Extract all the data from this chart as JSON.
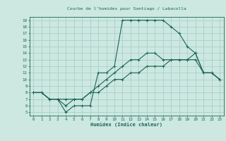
{
  "title": "Courbe de l’humidex pour Santiago / Labacolla",
  "xlabel": "Humidex (Indice chaleur)",
  "bg_color": "#cce8e0",
  "grid_color": "#aacfc8",
  "line_color": "#1a6655",
  "xlim": [
    -0.5,
    23.5
  ],
  "ylim": [
    4.5,
    19.5
  ],
  "xticks": [
    0,
    1,
    2,
    3,
    4,
    5,
    6,
    7,
    8,
    9,
    10,
    11,
    12,
    13,
    14,
    15,
    16,
    17,
    18,
    19,
    20,
    21,
    22,
    23
  ],
  "yticks": [
    5,
    6,
    7,
    8,
    9,
    10,
    11,
    12,
    13,
    14,
    15,
    16,
    17,
    18,
    19
  ],
  "line1_x": [
    0,
    1,
    2,
    3,
    4,
    5,
    6,
    7,
    8,
    9,
    10,
    11,
    12,
    13,
    14,
    15,
    16,
    17,
    18,
    19,
    20,
    21,
    22,
    23
  ],
  "line1_y": [
    8,
    8,
    7,
    7,
    5,
    6,
    6,
    6,
    11,
    11,
    12,
    19,
    19,
    19,
    19,
    19,
    19,
    18,
    17,
    15,
    14,
    11,
    11,
    10
  ],
  "line2_x": [
    0,
    1,
    2,
    3,
    4,
    5,
    6,
    7,
    8,
    9,
    10,
    11,
    12,
    13,
    14,
    15,
    16,
    17,
    18,
    19,
    20,
    21,
    22,
    23
  ],
  "line2_y": [
    8,
    8,
    7,
    7,
    6,
    7,
    7,
    8,
    9,
    10,
    11,
    12,
    13,
    13,
    14,
    14,
    13,
    13,
    13,
    13,
    14,
    11,
    11,
    10
  ],
  "line3_x": [
    0,
    1,
    2,
    3,
    4,
    5,
    6,
    7,
    8,
    9,
    10,
    11,
    12,
    13,
    14,
    15,
    16,
    17,
    18,
    19,
    20,
    21,
    22,
    23
  ],
  "line3_y": [
    8,
    8,
    7,
    7,
    7,
    7,
    7,
    8,
    8,
    9,
    10,
    10,
    11,
    11,
    12,
    12,
    12,
    13,
    13,
    13,
    13,
    11,
    11,
    10
  ],
  "marker": "+"
}
